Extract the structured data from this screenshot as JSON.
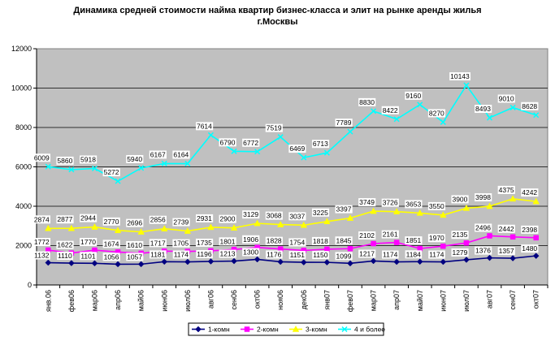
{
  "chart_data": {
    "type": "line",
    "title": "Динамика средней стоимости найма квартир бизнес-класса и элит на рынке аренды жилья",
    "subtitle": "г.Москвы",
    "xlabel": "",
    "ylabel": "",
    "ylim": [
      0,
      12000
    ],
    "yticks": [
      0,
      2000,
      4000,
      6000,
      8000,
      10000,
      12000
    ],
    "grid": true,
    "legend_position": "bottom",
    "categories": [
      "янв.06",
      "фев06",
      "мар06",
      "апр06",
      "май06",
      "июн06",
      "июл06",
      "авг06",
      "сен06",
      "окт06",
      "ноя06",
      "дек06",
      "янв07",
      "фев07",
      "мар07",
      "апр07",
      "май07",
      "июн07",
      "июл07",
      "авг07",
      "сен07",
      "окт07"
    ],
    "series": [
      {
        "name": "1-комн",
        "color": "#000080",
        "marker": "diamond",
        "values": [
          1132,
          1110,
          1101,
          1056,
          1057,
          1181,
          1174,
          1196,
          1213,
          1300,
          1176,
          1151,
          1150,
          1099,
          1217,
          1174,
          1184,
          1174,
          1279,
          1376,
          1357,
          1480
        ]
      },
      {
        "name": "2-комн",
        "color": "#ff00ff",
        "marker": "square",
        "values": [
          1772,
          1622,
          1770,
          1674,
          1610,
          1717,
          1705,
          1735,
          1801,
          1906,
          1828,
          1754,
          1818,
          1845,
          2102,
          2161,
          1851,
          1970,
          2135,
          2496,
          2442,
          2398
        ]
      },
      {
        "name": "3-комн",
        "color": "#ffff00",
        "marker": "triangle",
        "values": [
          2874,
          2877,
          2944,
          2770,
          2696,
          2856,
          2739,
          2931,
          2900,
          3129,
          3068,
          3037,
          3225,
          3397,
          3749,
          3726,
          3653,
          3550,
          3900,
          3998,
          4375,
          4242
        ]
      },
      {
        "name": "4 и более",
        "color": "#00ffff",
        "marker": "x",
        "values": [
          6009,
          5860,
          5918,
          5272,
          5940,
          6167,
          6164,
          7614,
          6790,
          6772,
          7519,
          6469,
          6713,
          7789,
          8830,
          8422,
          9160,
          8270,
          10143,
          8493,
          9010,
          8628
        ]
      }
    ]
  }
}
